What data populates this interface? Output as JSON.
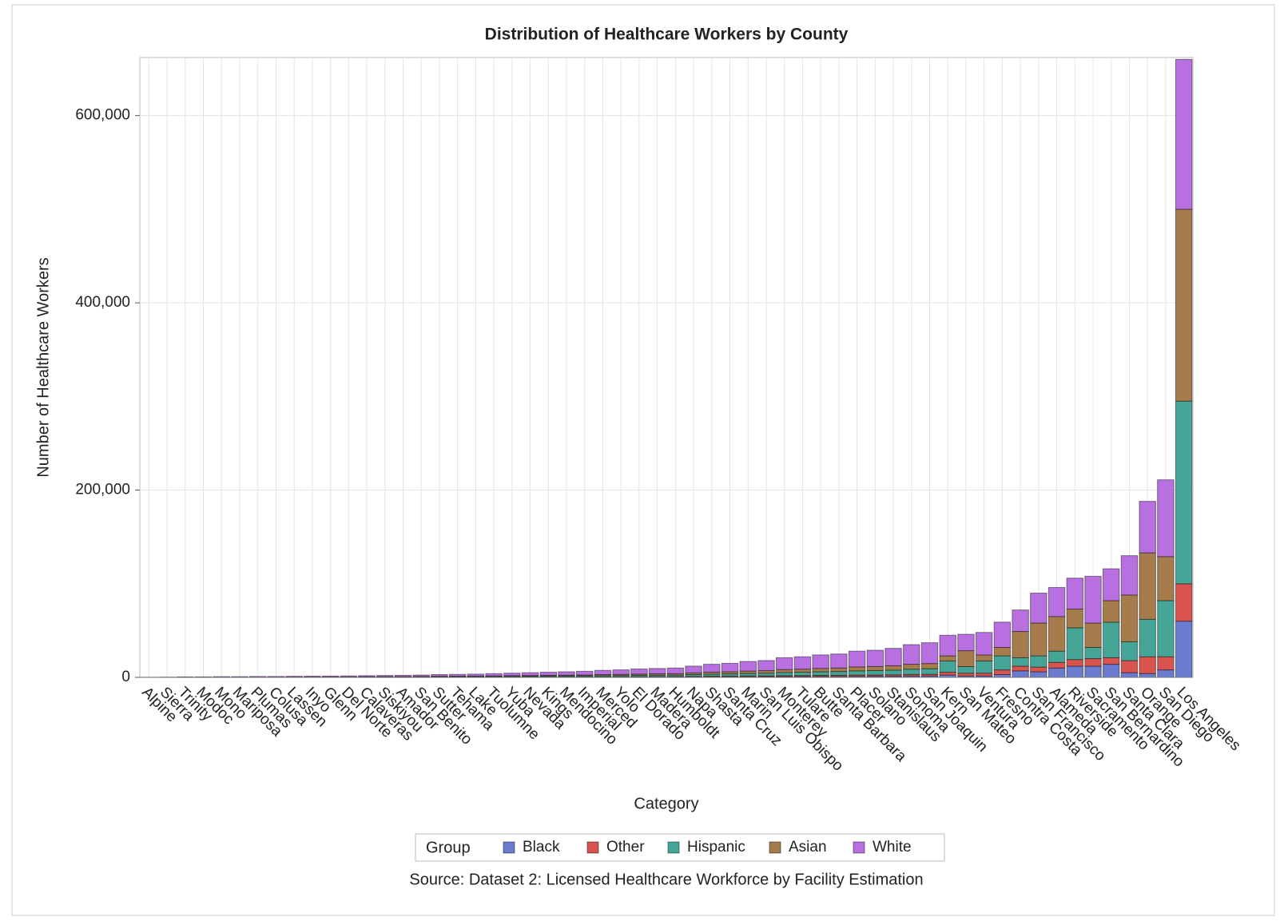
{
  "chart_data": {
    "type": "bar",
    "stacked": true,
    "title": "Distribution of Healthcare Workers by County",
    "x_label": "Category",
    "y_label": "Number of Healthcare Workers",
    "legend_title": "Group",
    "source": "Source: Dataset 2: Licensed Healthcare Workforce by Facility Estimation",
    "grid": true,
    "ylim": [
      0,
      662000
    ],
    "yticks": [
      0,
      {
        "value": 200000,
        "label": "200,000"
      },
      {
        "value": 400000,
        "label": "400,000"
      },
      {
        "value": 600000,
        "label": "600,000"
      }
    ],
    "categories": [
      "Alpine",
      "Sierra",
      "Trinity",
      "Modoc",
      "Mono",
      "Mariposa",
      "Plumas",
      "Colusa",
      "Lassen",
      "Inyo",
      "Glenn",
      "Del Norte",
      "Calaveras",
      "Siskiyou",
      "Amador",
      "San Benito",
      "Sutter",
      "Tehama",
      "Lake",
      "Tuolumne",
      "Yuba",
      "Nevada",
      "Kings",
      "Mendocino",
      "Imperial",
      "Merced",
      "Yolo",
      "El Dorado",
      "Madera",
      "Humboldt",
      "Napa",
      "Shasta",
      "Santa Cruz",
      "Marin",
      "San Luis Obispo",
      "Monterey",
      "Tulare",
      "Butte",
      "Santa Barbara",
      "Placer",
      "Solano",
      "Stanislaus",
      "Sonoma",
      "San Joaquin",
      "Kern",
      "San Mateo",
      "Ventura",
      "Fresno",
      "Contra Costa",
      "San Francisco",
      "Alameda",
      "Riverside",
      "Sacramento",
      "San Bernardino",
      "Santa Clara",
      "Orange",
      "San Diego",
      "Los Angeles"
    ],
    "series": [
      {
        "name": "Black",
        "color": "#6a7bd0",
        "values": [
          4,
          8,
          20,
          20,
          32,
          32,
          40,
          40,
          48,
          52,
          56,
          60,
          72,
          80,
          88,
          100,
          120,
          128,
          140,
          160,
          180,
          200,
          220,
          240,
          260,
          300,
          320,
          360,
          380,
          400,
          480,
          560,
          600,
          680,
          720,
          840,
          880,
          960,
          1000,
          1120,
          1160,
          1240,
          1400,
          1480,
          2500,
          1500,
          1500,
          3000,
          7000,
          6000,
          10000,
          12000,
          12000,
          14000,
          5000,
          4000,
          8000,
          60000
        ]
      },
      {
        "name": "Other",
        "color": "#d9534f",
        "values": [
          5,
          10,
          25,
          25,
          40,
          40,
          50,
          50,
          60,
          65,
          70,
          75,
          90,
          100,
          110,
          125,
          150,
          160,
          175,
          200,
          225,
          250,
          275,
          300,
          325,
          375,
          400,
          450,
          475,
          500,
          600,
          700,
          750,
          850,
          900,
          1050,
          1100,
          1200,
          1250,
          1400,
          1450,
          1550,
          1750,
          1850,
          3000,
          3000,
          3000,
          5000,
          5000,
          5000,
          6000,
          7000,
          8000,
          7000,
          13000,
          18000,
          14000,
          40000
        ]
      },
      {
        "name": "Hispanic",
        "color": "#45a597",
        "values": [
          16,
          32,
          80,
          80,
          128,
          128,
          160,
          160,
          192,
          208,
          224,
          240,
          288,
          320,
          352,
          400,
          480,
          512,
          560,
          640,
          720,
          800,
          880,
          960,
          1040,
          1200,
          1280,
          1440,
          1520,
          1600,
          1920,
          2240,
          2400,
          2720,
          2880,
          3360,
          3520,
          3840,
          4000,
          4480,
          4640,
          4960,
          5600,
          5920,
          12000,
          7000,
          13000,
          15000,
          9000,
          12000,
          12000,
          34000,
          12000,
          38000,
          20000,
          40000,
          60000,
          195000
        ]
      },
      {
        "name": "Asian",
        "color": "#a67c4c",
        "values": [
          15,
          30,
          75,
          75,
          120,
          120,
          150,
          150,
          180,
          195,
          210,
          225,
          270,
          300,
          330,
          375,
          450,
          480,
          525,
          600,
          675,
          750,
          825,
          900,
          975,
          1125,
          1200,
          1350,
          1425,
          1500,
          1800,
          2100,
          2250,
          2550,
          2700,
          3150,
          3300,
          3600,
          3750,
          4200,
          4350,
          4650,
          5250,
          5550,
          5500,
          17000,
          6500,
          9000,
          28000,
          35000,
          37000,
          20000,
          26000,
          23000,
          50000,
          71000,
          47000,
          205000
        ]
      },
      {
        "name": "White",
        "color": "#b86fe0",
        "values": [
          60,
          120,
          300,
          300,
          480,
          480,
          600,
          600,
          720,
          780,
          840,
          900,
          1080,
          1200,
          1320,
          1500,
          1800,
          1920,
          2100,
          2400,
          2700,
          3000,
          3300,
          3600,
          3900,
          4500,
          4800,
          5400,
          5700,
          6000,
          7200,
          8400,
          9000,
          10200,
          10800,
          12600,
          13200,
          14400,
          15000,
          16800,
          17400,
          18600,
          21000,
          22200,
          22000,
          17500,
          24000,
          27000,
          23000,
          32000,
          31000,
          33000,
          50000,
          34000,
          42000,
          55000,
          82000,
          160000
        ]
      }
    ]
  }
}
